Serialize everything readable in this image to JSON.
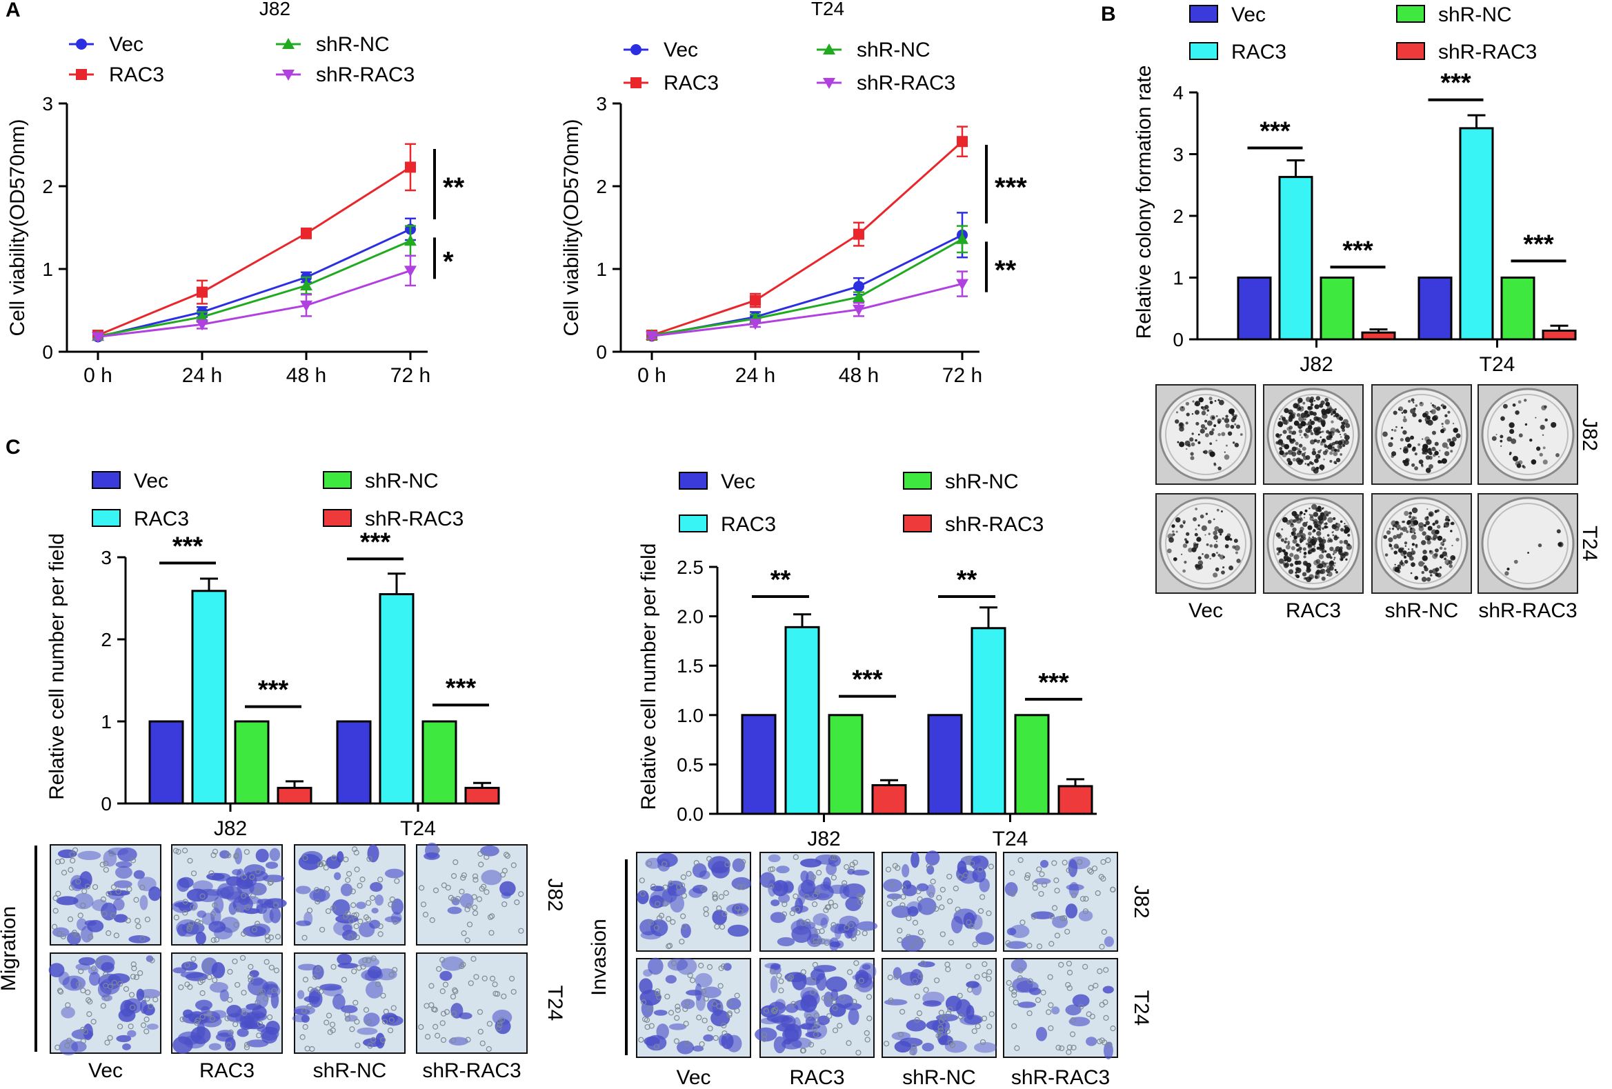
{
  "colors": {
    "Vec": "#3b3bdc",
    "RAC3": "#38f4f4",
    "shR-NC": "#3ee83e",
    "shR-RAC3": "#ee3a3a",
    "line_Vec": "#2b2fe0",
    "line_RAC3": "#e8262c",
    "line_shR-NC": "#1faa1f",
    "line_shR-RAC3": "#b040e0"
  },
  "panels": {
    "A": "A",
    "B": "B",
    "C": "C"
  },
  "chart_data": [
    {
      "id": "A1",
      "type": "line",
      "title": "J82",
      "ylabel": "Cell viability(OD570nm)",
      "xlabel": "",
      "x": [
        "0 h",
        "24 h",
        "48 h",
        "72 h"
      ],
      "ylim": [
        0,
        3
      ],
      "yticks": [
        "0",
        "1",
        "2",
        "3"
      ],
      "series": [
        {
          "name": "Vec",
          "values": [
            0.18,
            0.48,
            0.9,
            1.48
          ],
          "errors": [
            0.03,
            0.06,
            0.06,
            0.13
          ]
        },
        {
          "name": "RAC3",
          "values": [
            0.2,
            0.72,
            1.43,
            2.23
          ],
          "errors": [
            0.04,
            0.14,
            0.06,
            0.28
          ]
        },
        {
          "name": "shR-NC",
          "values": [
            0.19,
            0.42,
            0.8,
            1.34
          ],
          "errors": [
            0.03,
            0.06,
            0.1,
            0.18
          ]
        },
        {
          "name": "shR-RAC3",
          "values": [
            0.18,
            0.33,
            0.56,
            0.98
          ],
          "errors": [
            0.03,
            0.05,
            0.13,
            0.18
          ]
        }
      ],
      "significance": [
        {
          "label": "**",
          "y_top": 2.45,
          "y_bottom": 1.6
        },
        {
          "label": "*",
          "y_top": 1.38,
          "y_bottom": 0.88
        }
      ]
    },
    {
      "id": "A2",
      "type": "line",
      "title": "T24",
      "ylabel": "Cell viability(OD570nm)",
      "xlabel": "",
      "x": [
        "0 h",
        "24 h",
        "48 h",
        "72 h"
      ],
      "ylim": [
        0,
        3
      ],
      "yticks": [
        "0",
        "1",
        "2",
        "3"
      ],
      "series": [
        {
          "name": "Vec",
          "values": [
            0.19,
            0.42,
            0.79,
            1.41
          ],
          "errors": [
            0.04,
            0.06,
            0.1,
            0.27
          ]
        },
        {
          "name": "RAC3",
          "values": [
            0.2,
            0.62,
            1.42,
            2.54
          ],
          "errors": [
            0.04,
            0.08,
            0.14,
            0.18
          ]
        },
        {
          "name": "shR-NC",
          "values": [
            0.2,
            0.4,
            0.66,
            1.36
          ],
          "errors": [
            0.04,
            0.05,
            0.06,
            0.16
          ]
        },
        {
          "name": "shR-RAC3",
          "values": [
            0.19,
            0.34,
            0.51,
            0.82
          ],
          "errors": [
            0.03,
            0.04,
            0.08,
            0.15
          ]
        }
      ],
      "significance": [
        {
          "label": "***",
          "y_top": 2.5,
          "y_bottom": 1.55
        },
        {
          "label": "**",
          "y_top": 1.33,
          "y_bottom": 0.72
        }
      ]
    },
    {
      "id": "B",
      "type": "bar",
      "title": "",
      "ylabel": "Relative colony formation rate",
      "xlabel": "",
      "categories": [
        "J82",
        "T24"
      ],
      "ylim": [
        0,
        4
      ],
      "yticks": [
        "0",
        "1",
        "2",
        "3",
        "4"
      ],
      "series": [
        {
          "name": "Vec",
          "values": [
            1.0,
            1.0
          ],
          "errors": [
            0,
            0
          ]
        },
        {
          "name": "RAC3",
          "values": [
            2.63,
            3.42
          ],
          "errors": [
            0.27,
            0.21
          ]
        },
        {
          "name": "shR-NC",
          "values": [
            1.0,
            1.0
          ],
          "errors": [
            0,
            0
          ]
        },
        {
          "name": "shR-RAC3",
          "values": [
            0.11,
            0.14
          ],
          "errors": [
            0.05,
            0.08
          ]
        }
      ],
      "significance": [
        {
          "group": 0,
          "pair": "Vec-RAC3",
          "label": "***",
          "y": 3.1
        },
        {
          "group": 0,
          "pair": "shR-NC-shR-RAC3",
          "label": "***",
          "y": 1.17
        },
        {
          "group": 1,
          "pair": "Vec-RAC3",
          "label": "***",
          "y": 3.88
        },
        {
          "group": 1,
          "pair": "shR-NC-shR-RAC3",
          "label": "***",
          "y": 1.27
        }
      ]
    },
    {
      "id": "C1",
      "type": "bar",
      "title": "",
      "ylabel": "Relative cell number per field",
      "xlabel": "",
      "categories": [
        "J82",
        "T24"
      ],
      "ylim": [
        0,
        3
      ],
      "yticks": [
        "0",
        "1",
        "2",
        "3"
      ],
      "series": [
        {
          "name": "Vec",
          "values": [
            1.0,
            1.0
          ],
          "errors": [
            0,
            0
          ]
        },
        {
          "name": "RAC3",
          "values": [
            2.59,
            2.55
          ],
          "errors": [
            0.15,
            0.25
          ]
        },
        {
          "name": "shR-NC",
          "values": [
            1.0,
            1.0
          ],
          "errors": [
            0,
            0
          ]
        },
        {
          "name": "shR-RAC3",
          "values": [
            0.19,
            0.19
          ],
          "errors": [
            0.08,
            0.06
          ]
        }
      ],
      "significance": [
        {
          "group": 0,
          "pair": "Vec-RAC3",
          "label": "***",
          "y": 2.93
        },
        {
          "group": 0,
          "pair": "shR-NC-shR-RAC3",
          "label": "***",
          "y": 1.18
        },
        {
          "group": 1,
          "pair": "Vec-RAC3",
          "label": "***",
          "y": 2.98
        },
        {
          "group": 1,
          "pair": "shR-NC-shR-RAC3",
          "label": "***",
          "y": 1.2
        }
      ]
    },
    {
      "id": "C2",
      "type": "bar",
      "title": "",
      "ylabel": "Relative cell number per field",
      "xlabel": "",
      "categories": [
        "J82",
        "T24"
      ],
      "ylim": [
        0,
        2.5
      ],
      "yticks": [
        "0.0",
        "0.5",
        "1.0",
        "1.5",
        "2.0",
        "2.5"
      ],
      "series": [
        {
          "name": "Vec",
          "values": [
            1.0,
            1.0
          ],
          "errors": [
            0,
            0
          ]
        },
        {
          "name": "RAC3",
          "values": [
            1.89,
            1.88
          ],
          "errors": [
            0.13,
            0.21
          ]
        },
        {
          "name": "shR-NC",
          "values": [
            1.0,
            1.0
          ],
          "errors": [
            0,
            0
          ]
        },
        {
          "name": "shR-RAC3",
          "values": [
            0.29,
            0.28
          ],
          "errors": [
            0.05,
            0.07
          ]
        }
      ],
      "significance": [
        {
          "group": 0,
          "pair": "Vec-RAC3",
          "label": "**",
          "y": 2.2
        },
        {
          "group": 0,
          "pair": "shR-NC-shR-RAC3",
          "label": "***",
          "y": 1.19
        },
        {
          "group": 1,
          "pair": "Vec-RAC3",
          "label": "**",
          "y": 2.2
        },
        {
          "group": 1,
          "pair": "shR-NC-shR-RAC3",
          "label": "***",
          "y": 1.16
        }
      ]
    }
  ],
  "images": {
    "B": {
      "columns": [
        "Vec",
        "RAC3",
        "shR-NC",
        "shR-RAC3"
      ],
      "rows": [
        "J82",
        "T24"
      ],
      "density": [
        [
          0.35,
          0.9,
          0.45,
          0.15
        ],
        [
          0.3,
          1.0,
          0.6,
          0.03
        ]
      ]
    },
    "C_migration": {
      "side_label": "Migration",
      "columns": [
        "Vec",
        "RAC3",
        "shR-NC",
        "shR-RAC3"
      ],
      "rows": [
        "J82",
        "T24"
      ],
      "density": [
        [
          0.5,
          0.95,
          0.45,
          0.15
        ],
        [
          0.55,
          0.9,
          0.5,
          0.12
        ]
      ]
    },
    "C_invasion": {
      "side_label": "Invasion",
      "columns": [
        "Vec",
        "RAC3",
        "shR-NC",
        "shR-RAC3"
      ],
      "rows": [
        "J82",
        "T24"
      ],
      "density": [
        [
          0.5,
          0.9,
          0.45,
          0.25
        ],
        [
          0.5,
          0.85,
          0.45,
          0.22
        ]
      ]
    }
  }
}
